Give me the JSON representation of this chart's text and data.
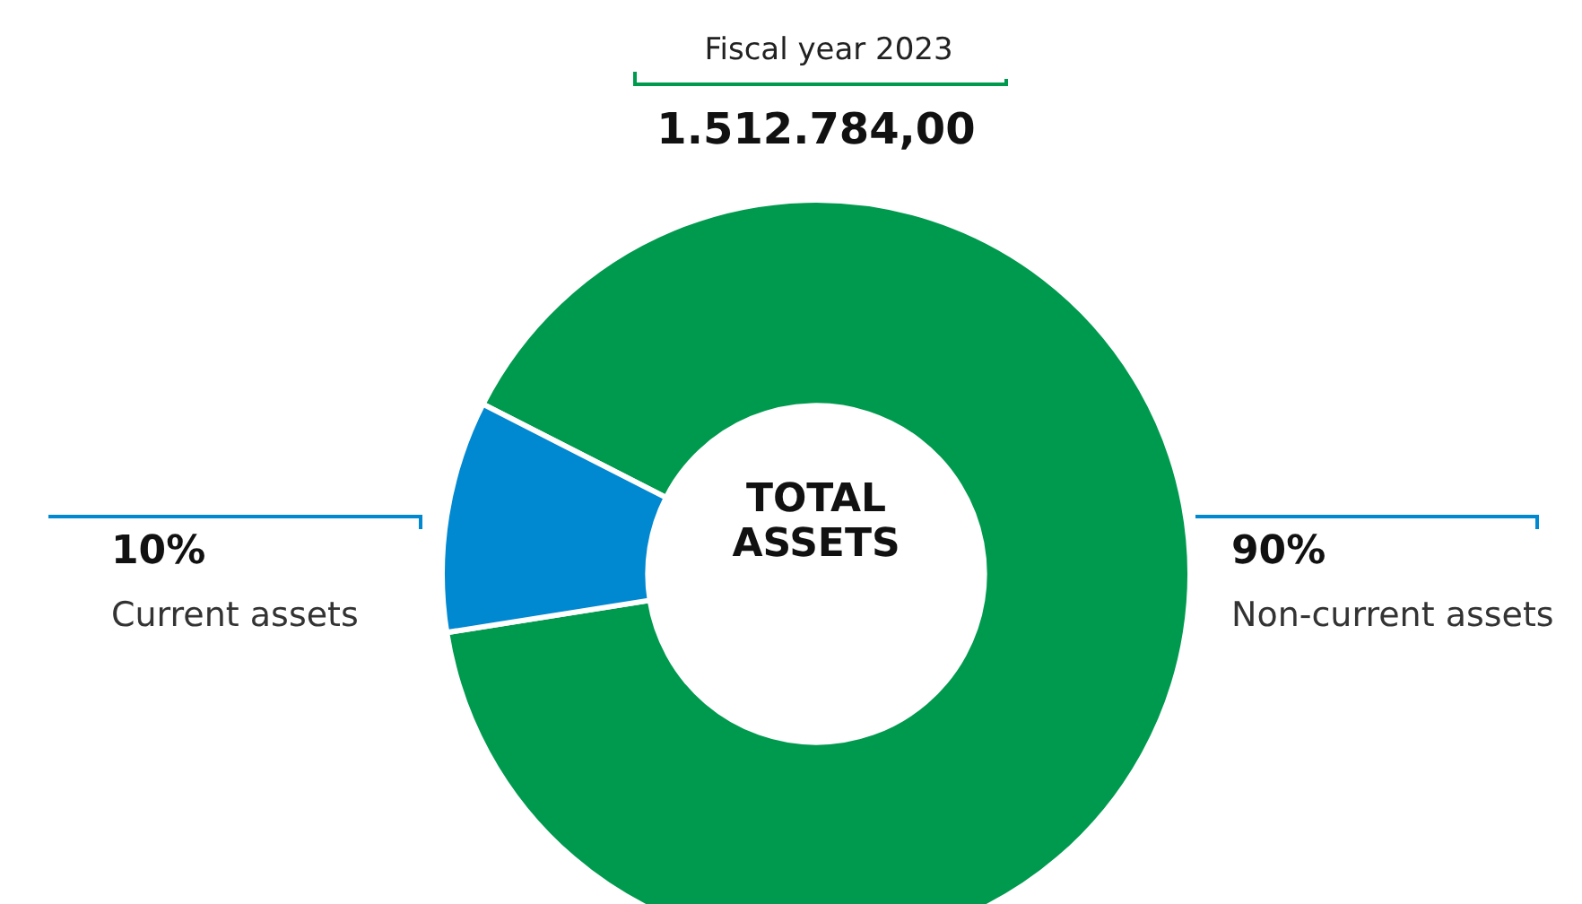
{
  "chart_data": {
    "type": "donut",
    "title": "Fiscal year 2023",
    "subtitle": "1.512.784,00",
    "categories": [
      "Non-current assets",
      "Current assets"
    ],
    "values": [
      90,
      10
    ],
    "value_labels": [
      "90%",
      "10%"
    ],
    "colors": [
      "#009a4e",
      "#0088d1"
    ],
    "annotations": [
      "TOTAL ASSETS"
    ],
    "legend": false
  }
}
